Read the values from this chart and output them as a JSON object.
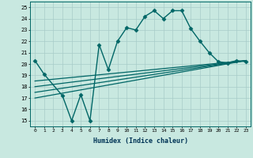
{
  "title": "",
  "xlabel": "Humidex (Indice chaleur)",
  "ylabel": "",
  "xlim": [
    -0.5,
    23.5
  ],
  "ylim": [
    14.5,
    25.5
  ],
  "xticks": [
    0,
    1,
    2,
    3,
    4,
    5,
    6,
    7,
    8,
    9,
    10,
    11,
    12,
    13,
    14,
    15,
    16,
    17,
    18,
    19,
    20,
    21,
    22,
    23
  ],
  "yticks": [
    15,
    16,
    17,
    18,
    19,
    20,
    21,
    22,
    23,
    24,
    25
  ],
  "bg_color": "#c8e8e0",
  "line_color": "#006666",
  "grid_color": "#a8ccc8",
  "lines": [
    {
      "x": [
        0,
        1,
        3,
        4,
        5,
        6,
        7,
        8,
        9,
        10,
        11,
        12,
        13,
        14,
        15,
        16,
        17,
        18,
        19,
        20,
        21,
        22,
        23
      ],
      "y": [
        20.3,
        19.1,
        17.2,
        15.0,
        17.3,
        15.0,
        21.7,
        19.5,
        22.0,
        23.2,
        23.0,
        24.2,
        24.7,
        24.0,
        24.7,
        24.7,
        23.1,
        22.0,
        21.0,
        20.2,
        20.1,
        20.3,
        20.2
      ],
      "marker": "D",
      "markersize": 2.5,
      "linewidth": 1.0
    },
    {
      "x": [
        0,
        23
      ],
      "y": [
        17.0,
        20.3
      ],
      "marker": null,
      "markersize": 0,
      "linewidth": 0.9
    },
    {
      "x": [
        0,
        23
      ],
      "y": [
        17.5,
        20.3
      ],
      "marker": null,
      "markersize": 0,
      "linewidth": 0.9
    },
    {
      "x": [
        0,
        23
      ],
      "y": [
        18.0,
        20.3
      ],
      "marker": null,
      "markersize": 0,
      "linewidth": 0.9
    },
    {
      "x": [
        0,
        23
      ],
      "y": [
        18.5,
        20.3
      ],
      "marker": null,
      "markersize": 0,
      "linewidth": 0.9
    }
  ]
}
